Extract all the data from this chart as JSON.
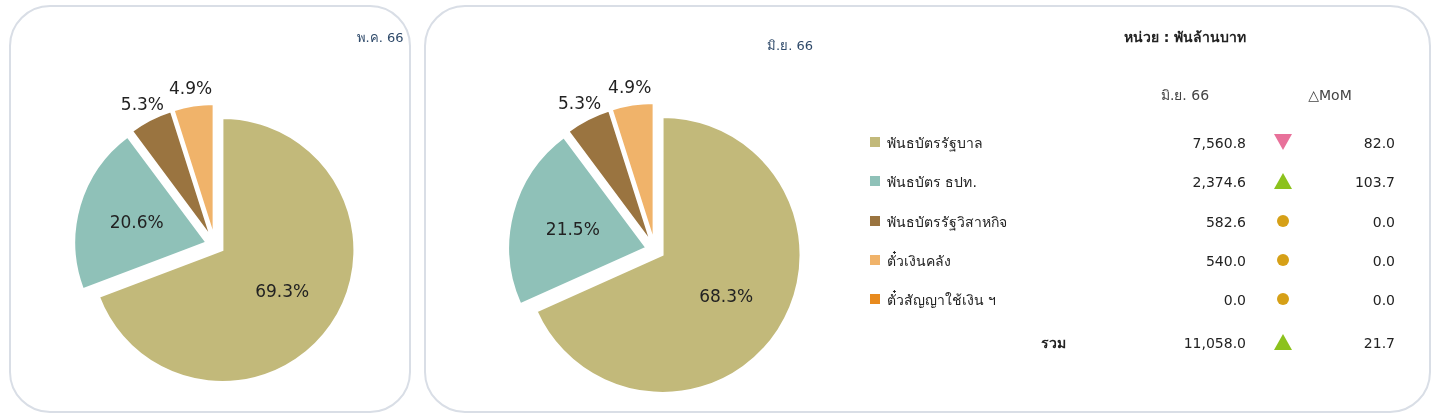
{
  "chart_data": [
    {
      "type": "pie",
      "title": "พ.ค. 66",
      "categories": [
        null,
        null,
        null,
        null
      ],
      "values": [
        69.3,
        20.6,
        5.3,
        4.9
      ],
      "colors": [
        "#c2b97a",
        "#8fc1b8",
        "#9a7440",
        "#f0b36a"
      ],
      "value_labels": [
        "69.3%",
        "20.6%",
        "5.3%",
        "4.9%"
      ]
    },
    {
      "type": "pie",
      "title": "มิ.ย. 66",
      "legend": "right",
      "categories": [
        "พันธบัตรรัฐบาล",
        "พันธบัตร ธปท.",
        "พันธบัตรรัฐวิสาหกิจ",
        "ตั๋วเงินคลัง",
        "ตั๋วสัญญาใช้เงิน ฯ"
      ],
      "values": [
        68.3,
        21.5,
        5.3,
        4.9,
        0
      ],
      "colors": [
        "#c2b97a",
        "#8fc1b8",
        "#9a7440",
        "#f0b36a",
        "#e88a1e"
      ],
      "value_labels": [
        "68.3%",
        "21.5%",
        "5.3%",
        "4.9%",
        null
      ]
    },
    {
      "type": "other",
      "title": "หน่วย : พันล้านบาท",
      "annotations": [
        "มิ.ย. 66",
        "△MoM",
        "7,560.8",
        "82.0",
        "2,374.6",
        "103.7",
        "582.6",
        "0.0",
        "540.0",
        "0.0",
        "0.0",
        "0.0",
        "11,058.0",
        "21.7",
        "รวม"
      ]
    }
  ]
}
